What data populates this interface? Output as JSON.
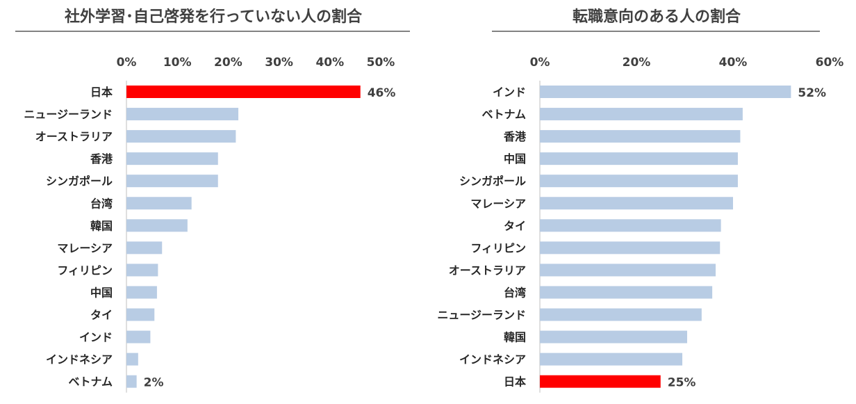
{
  "chart_data": [
    {
      "type": "bar",
      "orientation": "horizontal",
      "title": "社外学習･自己啓発を行っていない人の割合",
      "categories": [
        "日本",
        "ニュージーランド",
        "オーストラリア",
        "香港",
        "シンガポール",
        "台湾",
        "韓国",
        "マレーシア",
        "フィリピン",
        "中国",
        "タイ",
        "インド",
        "インドネシア",
        "ベトナム"
      ],
      "values": [
        46,
        22,
        21.5,
        18,
        18,
        12.8,
        12,
        7,
        6.2,
        6,
        5.5,
        4.7,
        2.3,
        2
      ],
      "xlim": [
        0,
        50
      ],
      "xticks": [
        0,
        10,
        20,
        30,
        40,
        50
      ],
      "tick_labels": [
        "0%",
        "10%",
        "20%",
        "30%",
        "40%",
        "50%"
      ],
      "data_labels": [
        {
          "category": "日本",
          "text": "46%"
        },
        {
          "category": "ベトナム",
          "text": "2%"
        }
      ],
      "highlight": "日本",
      "colors": {
        "bar": "#b8cce4",
        "highlight": "#ff0000"
      },
      "grid": false,
      "legend": "none"
    },
    {
      "type": "bar",
      "orientation": "horizontal",
      "title": "転職意向のある人の割合",
      "categories": [
        "インド",
        "ベトナム",
        "香港",
        "中国",
        "シンガポール",
        "マレーシア",
        "タイ",
        "フィリピン",
        "オーストラリア",
        "台湾",
        "ニュージーランド",
        "韓国",
        "インドネシア",
        "日本"
      ],
      "values": [
        52,
        42,
        41.5,
        41,
        41,
        40,
        37.5,
        37.3,
        36.4,
        35.7,
        33.5,
        30.5,
        29.5,
        25
      ],
      "xlim": [
        0,
        60
      ],
      "xticks": [
        0,
        20,
        40,
        60
      ],
      "tick_labels": [
        "0%",
        "20%",
        "40%",
        "60%"
      ],
      "data_labels": [
        {
          "category": "インド",
          "text": "52%"
        },
        {
          "category": "日本",
          "text": "25%"
        }
      ],
      "highlight": "日本",
      "colors": {
        "bar": "#b8cce4",
        "highlight": "#ff0000"
      },
      "grid": false,
      "legend": "none"
    }
  ]
}
